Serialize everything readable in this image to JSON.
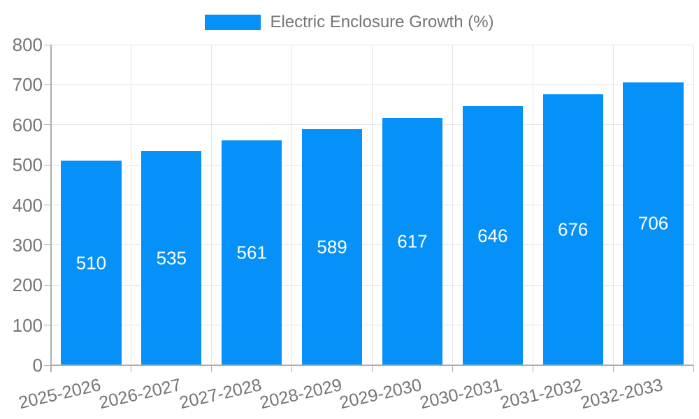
{
  "chart_data": {
    "type": "bar",
    "title": "",
    "legend_position": "top",
    "series": [
      {
        "name": "Electric Enclosure Growth (%)",
        "color": "#0591f8",
        "values": [
          510,
          535,
          561,
          589,
          617,
          646,
          676,
          706
        ]
      }
    ],
    "categories": [
      "2025-2026",
      "2026-2027",
      "2027-2028",
      "2028-2029",
      "2029-2030",
      "2030-2031",
      "2031-2032",
      "2032-2033"
    ],
    "xlabel": "",
    "ylabel": "",
    "ylim": [
      0,
      800
    ],
    "yticks": [
      0,
      100,
      200,
      300,
      400,
      500,
      600,
      700,
      800
    ],
    "grid": true,
    "value_labels": "inside-center",
    "value_label_color": "#ffffff",
    "axis_text_color": "#757575",
    "axis_line_color": "#aeaeae",
    "grid_line_color": "#e4e4e4",
    "background_color": "#ffffff"
  }
}
